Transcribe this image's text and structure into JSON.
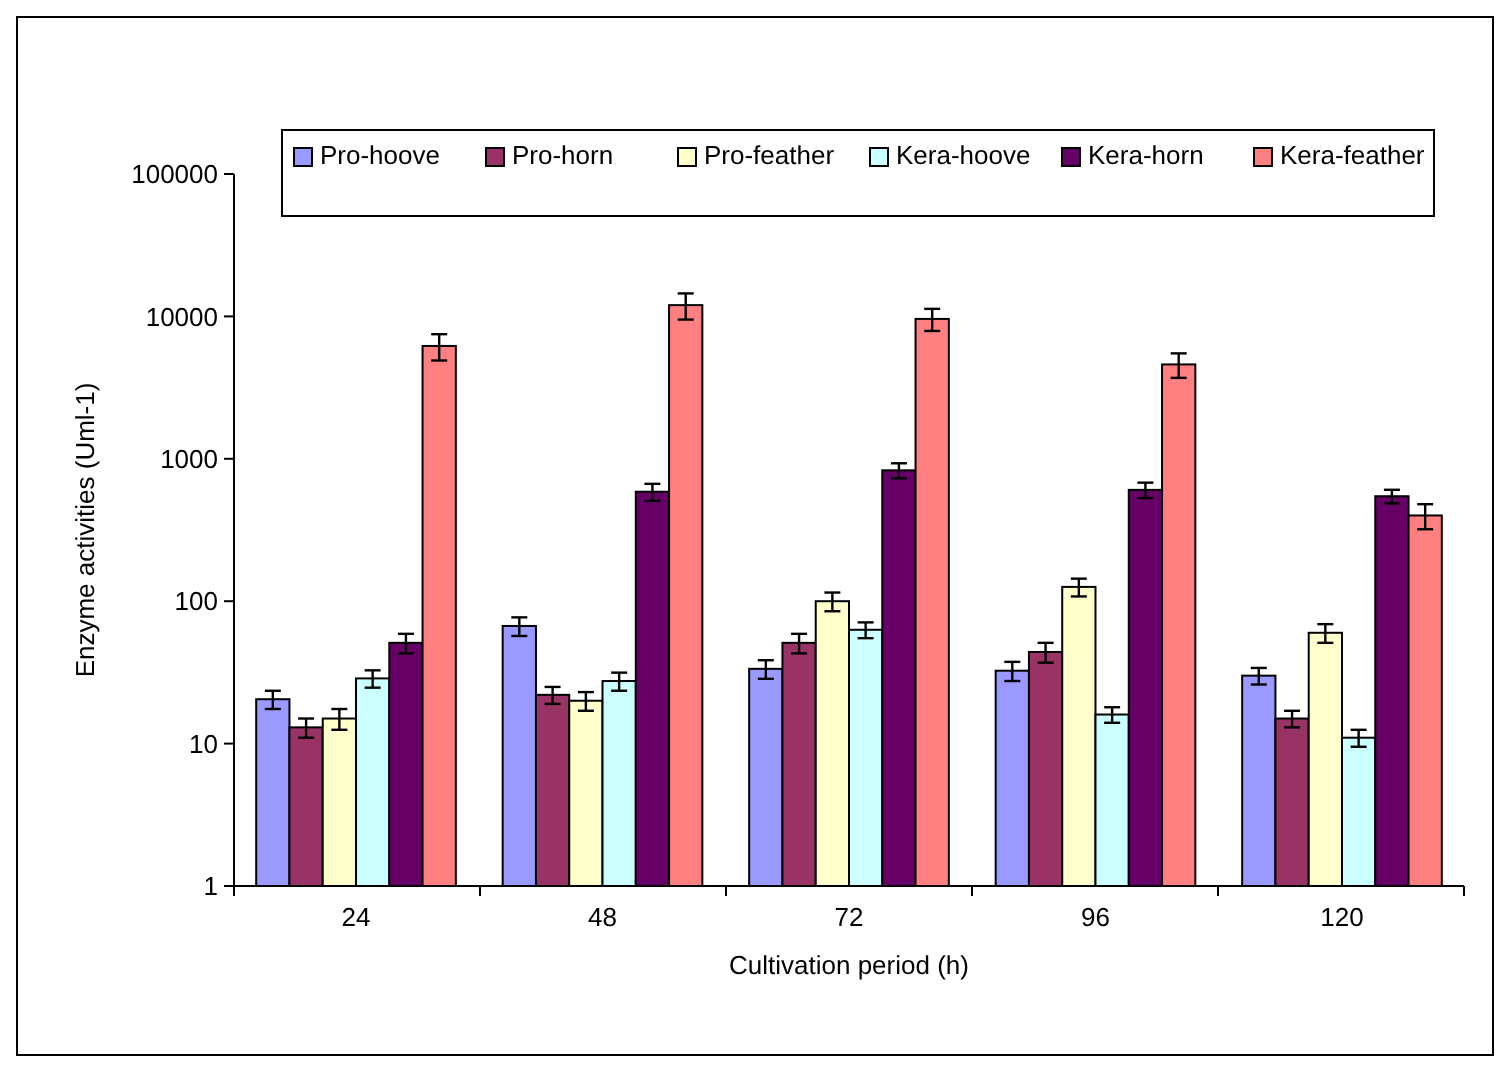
{
  "chart_data": {
    "type": "bar",
    "xlabel": "Cultivation period (h)",
    "ylabel": "Enzyme activities (Uml-1)",
    "categories": [
      "24",
      "48",
      "72",
      "96",
      "120"
    ],
    "series": [
      {
        "name": "Pro-hoove",
        "color": "#9999ff",
        "values": [
          20.5,
          67,
          33.5,
          32.5,
          30
        ],
        "errors": [
          3,
          10,
          5,
          5,
          4
        ]
      },
      {
        "name": "Pro-horn",
        "color": "#993366",
        "values": [
          13,
          22,
          51,
          44,
          15
        ],
        "errors": [
          2,
          3,
          8,
          7,
          2
        ]
      },
      {
        "name": "Pro-feather",
        "color": "#ffffcc",
        "values": [
          15,
          20,
          100,
          126,
          60
        ],
        "errors": [
          2.5,
          3,
          15,
          18,
          9
        ]
      },
      {
        "name": "Kera-hoove",
        "color": "#ccffff",
        "values": [
          28.7,
          27.5,
          63,
          16,
          11
        ],
        "errors": [
          4,
          4,
          8,
          2,
          1.5
        ]
      },
      {
        "name": "Kera-horn",
        "color": "#660066",
        "values": [
          51,
          587,
          830,
          605,
          546
        ],
        "errors": [
          8,
          80,
          100,
          75,
          60
        ]
      },
      {
        "name": "Kera-feather",
        "color": "#ff8080",
        "values": [
          6200,
          12000,
          9600,
          4600,
          400
        ],
        "errors": [
          1300,
          2500,
          1700,
          900,
          80
        ]
      }
    ],
    "log": true,
    "ylim": [
      1,
      100000
    ],
    "yticks": [
      1,
      10,
      100,
      1000,
      10000,
      100000
    ],
    "grid": false,
    "legend": "top"
  }
}
